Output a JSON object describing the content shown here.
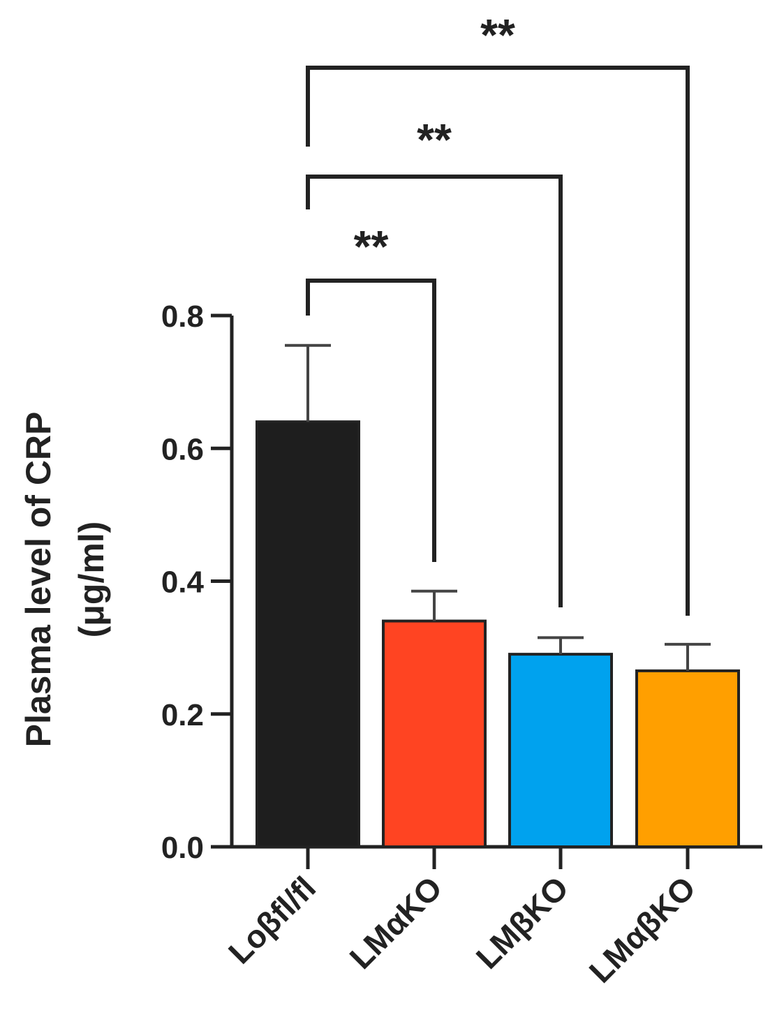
{
  "chart_data": {
    "type": "bar",
    "title": "",
    "xlabel": "",
    "ylabel_lines": [
      "Plasma level of CRP",
      "(μg/ml)"
    ],
    "ylim": [
      0,
      0.8
    ],
    "yticks": [
      0.0,
      0.2,
      0.4,
      0.6,
      0.8
    ],
    "ytick_labels": [
      "0.0",
      "0.2",
      "0.4",
      "0.6",
      "0.8"
    ],
    "grid": false,
    "categories": [
      "Loβfl/fl",
      "LMαKO",
      "LMβKO",
      "LMαβKO"
    ],
    "values": [
      0.64,
      0.34,
      0.29,
      0.265
    ],
    "errors": [
      0.115,
      0.045,
      0.025,
      0.04
    ],
    "colors": [
      "#1e1e1e",
      "#ff4422",
      "#00a2ee",
      "#ff9f00"
    ],
    "significance": [
      {
        "from": 0,
        "to": 1,
        "label": "**"
      },
      {
        "from": 0,
        "to": 2,
        "label": "**"
      },
      {
        "from": 0,
        "to": 3,
        "label": "**"
      }
    ]
  }
}
